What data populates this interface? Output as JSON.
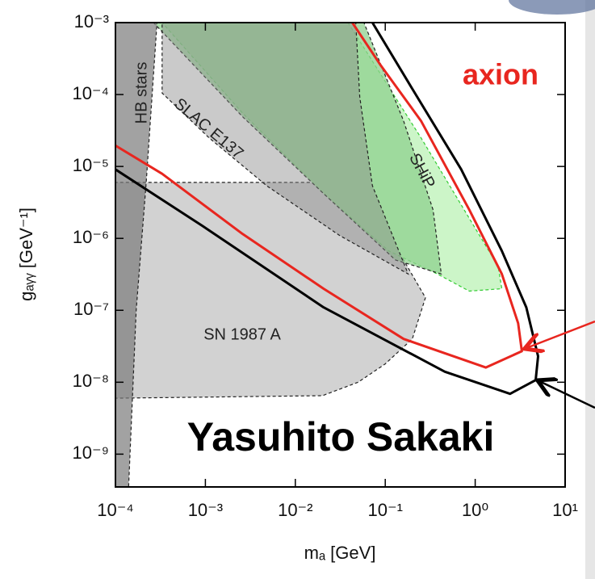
{
  "chart_data": {
    "type": "line",
    "xscale": "log",
    "yscale": "log",
    "xlabel": "mₐ [GeV]",
    "ylabel": "gₐᵧᵧ [GeV⁻¹]",
    "xlim": [
      0.0001,
      10
    ],
    "ylim": [
      3.5e-10,
      0.001
    ],
    "xticks": [
      {
        "value": 0.0001,
        "label": "10⁻⁴"
      },
      {
        "value": 0.001,
        "label": "10⁻³"
      },
      {
        "value": 0.01,
        "label": "10⁻²"
      },
      {
        "value": 0.1,
        "label": "10⁻¹"
      },
      {
        "value": 1,
        "label": "10⁰"
      },
      {
        "value": 10,
        "label": "10¹"
      }
    ],
    "yticks": [
      {
        "value": 1e-09,
        "label": "10⁻⁹"
      },
      {
        "value": 1e-08,
        "label": "10⁻⁸"
      },
      {
        "value": 1e-07,
        "label": "10⁻⁷"
      },
      {
        "value": 1e-06,
        "label": "10⁻⁶"
      },
      {
        "value": 1e-05,
        "label": "10⁻⁵"
      },
      {
        "value": 0.0001,
        "label": "10⁻⁴"
      },
      {
        "value": 0.001,
        "label": "10⁻³"
      }
    ],
    "series": [
      {
        "fill": "#d2d2d2",
        "color": "#222222",
        "opacity": 1,
        "x": [
          0.0001,
          0.0001,
          0.03,
          0.09,
          0.16,
          0.28,
          0.2,
          0.1,
          0.05,
          0.02,
          0.0001
        ],
        "values": [
          6e-09,
          6e-06,
          6e-06,
          2.5e-06,
          5e-07,
          1.5e-07,
          4e-08,
          1.8e-08,
          1e-08,
          6.5e-09,
          6e-09
        ]
      },
      {
        "fill": "#ccf5c8",
        "color": "#33cc33",
        "opacity": 1,
        "x": [
          0.0385,
          0.25,
          0.86,
          1.8,
          1.98,
          0.86,
          0.38,
          0.109,
          0.0206,
          0.0026,
          0.00033
        ],
        "values": [
          0.001,
          2.5e-05,
          1.9e-06,
          4.1e-07,
          2e-07,
          1.85e-07,
          3.2e-07,
          6.7e-07,
          4.2e-06,
          5.5e-05,
          0.001
        ]
      },
      {
        "fill": "#8fd08f",
        "color": "#222222",
        "opacity": 0.75,
        "x": [
          0.000265,
          0.058,
          0.16,
          0.34,
          0.42,
          0.13,
          0.0206,
          0.0026
        ],
        "values": [
          0.001,
          0.001,
          4.3e-05,
          2.5e-06,
          3.2e-07,
          5e-07,
          4.2e-06,
          4.9e-05
        ]
      },
      {
        "fill": "#8a8a8a",
        "color": "#222222",
        "opacity": 0.45,
        "x": [
          0.00033,
          0.047,
          0.052,
          0.072,
          0.13,
          0.18,
          0.031,
          0.0048,
          0.0011,
          0.00033
        ],
        "values": [
          0.001,
          0.001,
          9.3e-05,
          5.4e-06,
          8.7e-07,
          3.2e-07,
          1.1e-06,
          5.4e-06,
          2.5e-05,
          0.000105
        ]
      },
      {
        "fill": "#7a7a7a",
        "color": "#222222",
        "opacity": 0.7,
        "x": [
          0.0001,
          0.00029,
          0.00022,
          0.00017,
          0.00014,
          0.0001
        ],
        "values": [
          0.001,
          0.001,
          6e-06,
          1e-07,
          3.5e-10,
          3.5e-10
        ]
      },
      {
        "color": "#e8261f",
        "x": [
          0.0001,
          0.00033,
          0.0026,
          0.0206,
          0.16,
          1.31,
          3.3,
          3.0,
          1.98,
          0.86,
          0.25,
          0.088,
          0.043
        ],
        "values": [
          1.95e-05,
          7.9e-06,
          1.15e-06,
          2e-07,
          4e-08,
          1.6e-08,
          2.7e-08,
          6.6e-08,
          3.2e-07,
          2.5e-06,
          4.3e-05,
          0.00026,
          0.001
        ]
      },
      {
        "color": "#000000",
        "x": [
          0.0001,
          0.00092,
          0.0206,
          0.46,
          2.44,
          4.7,
          5.0,
          3.7,
          1.98,
          0.7,
          0.2,
          0.072
        ],
        "values": [
          9.1e-06,
          1.5e-06,
          1.1e-07,
          1.4e-08,
          6.9e-09,
          1.07e-08,
          2.3e-08,
          1.1e-07,
          6.7e-07,
          9.1e-06,
          0.00012,
          0.001
        ]
      }
    ],
    "annotations": [
      "axion",
      "HB stars",
      "SLAC E137",
      "SHiP",
      "SN 1987 A",
      "Yasuhito Sakaki"
    ]
  }
}
